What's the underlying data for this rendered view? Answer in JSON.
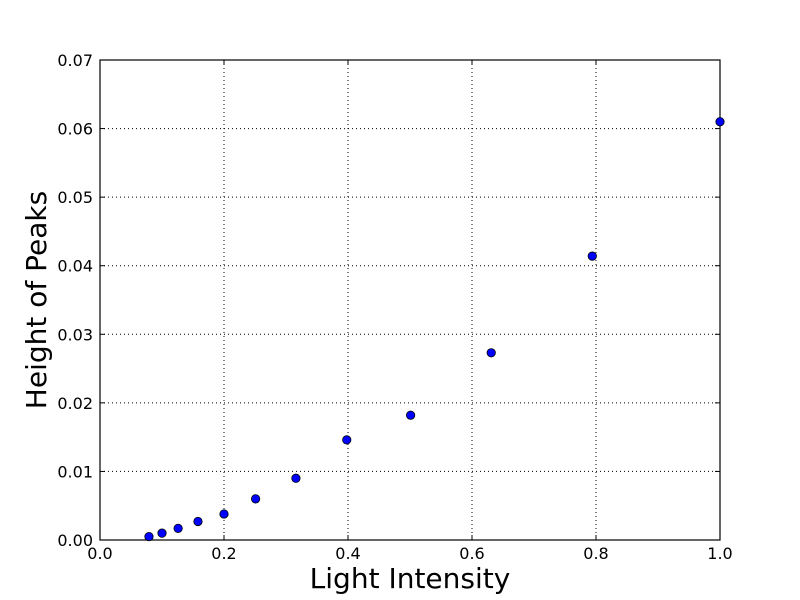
{
  "chart_data": {
    "type": "scatter",
    "xlabel": "Light Intensity",
    "ylabel": "Height of Peaks",
    "xlim": [
      0.0,
      1.0
    ],
    "ylim": [
      0.0,
      0.07
    ],
    "x_ticks": [
      "0.0",
      "0.2",
      "0.4",
      "0.6",
      "0.8",
      "1.0"
    ],
    "y_ticks": [
      "0.00",
      "0.01",
      "0.02",
      "0.03",
      "0.04",
      "0.05",
      "0.06",
      "0.07"
    ],
    "grid": true,
    "marker_color": "#0000ff",
    "series": [
      {
        "points": [
          {
            "x": 0.079,
            "y": 0.0005
          },
          {
            "x": 0.1,
            "y": 0.001
          },
          {
            "x": 0.126,
            "y": 0.0017
          },
          {
            "x": 0.158,
            "y": 0.0027
          },
          {
            "x": 0.2,
            "y": 0.0038
          },
          {
            "x": 0.251,
            "y": 0.006
          },
          {
            "x": 0.316,
            "y": 0.009
          },
          {
            "x": 0.398,
            "y": 0.0146
          },
          {
            "x": 0.501,
            "y": 0.0182
          },
          {
            "x": 0.631,
            "y": 0.0273
          },
          {
            "x": 0.794,
            "y": 0.0414
          },
          {
            "x": 1.0,
            "y": 0.061
          }
        ]
      }
    ]
  }
}
